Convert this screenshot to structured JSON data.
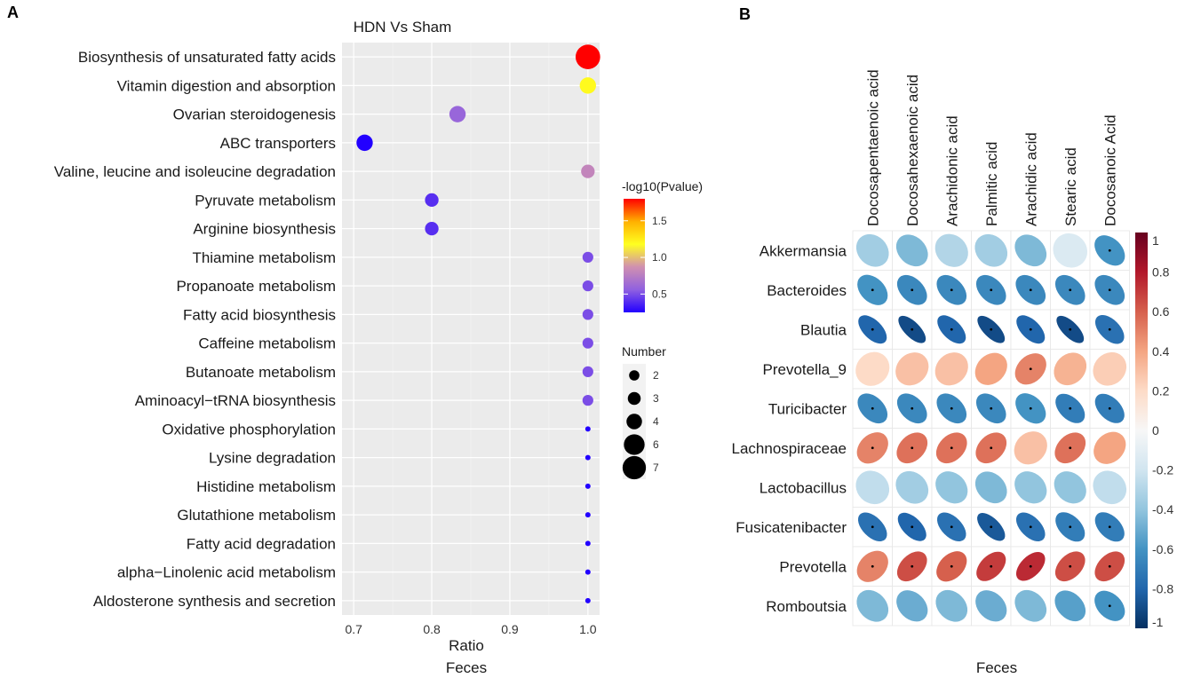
{
  "panels": {
    "a_label": "A",
    "b_label": "B"
  },
  "chart_data": [
    {
      "type": "scatter",
      "title": "HDN Vs Sham",
      "xlabel": "Ratio",
      "xlabel2": "Feces",
      "xlim": [
        0.7,
        1.0
      ],
      "xticks": [
        "0.7",
        "0.8",
        "0.9",
        "1.0"
      ],
      "xtick_values": [
        0.7,
        0.8,
        0.9,
        1.0
      ],
      "categories": [
        "Biosynthesis of unsaturated fatty acids",
        "Vitamin digestion and absorption",
        "Ovarian steroidogenesis",
        "ABC transporters",
        "Valine, leucine and isoleucine degradation",
        "Pyruvate metabolism",
        "Arginine biosynthesis",
        "Thiamine metabolism",
        "Propanoate metabolism",
        "Fatty acid biosynthesis",
        "Caffeine metabolism",
        "Butanoate metabolism",
        "Aminoacyl−tRNA biosynthesis",
        "Oxidative phosphorylation",
        "Lysine degradation",
        "Histidine metabolism",
        "Glutathione metabolism",
        "Fatty acid degradation",
        "alpha−Linolenic acid metabolism",
        "Aldosterone synthesis and secretion"
      ],
      "points": [
        {
          "ratio": 1.0,
          "number": 7,
          "neglog10p": 1.8
        },
        {
          "ratio": 1.0,
          "number": 4,
          "neglog10p": 1.2
        },
        {
          "ratio": 0.833,
          "number": 4,
          "neglog10p": 0.6
        },
        {
          "ratio": 0.714,
          "number": 4,
          "neglog10p": 0.25
        },
        {
          "ratio": 1.0,
          "number": 3,
          "neglog10p": 0.8
        },
        {
          "ratio": 0.8,
          "number": 3,
          "neglog10p": 0.4
        },
        {
          "ratio": 0.8,
          "number": 3,
          "neglog10p": 0.4
        },
        {
          "ratio": 1.0,
          "number": 2,
          "neglog10p": 0.5
        },
        {
          "ratio": 1.0,
          "number": 2,
          "neglog10p": 0.5
        },
        {
          "ratio": 1.0,
          "number": 2,
          "neglog10p": 0.5
        },
        {
          "ratio": 1.0,
          "number": 2,
          "neglog10p": 0.5
        },
        {
          "ratio": 1.0,
          "number": 2,
          "neglog10p": 0.5
        },
        {
          "ratio": 1.0,
          "number": 2,
          "neglog10p": 0.5
        },
        {
          "ratio": 1.0,
          "number": 1,
          "neglog10p": 0.25
        },
        {
          "ratio": 1.0,
          "number": 1,
          "neglog10p": 0.25
        },
        {
          "ratio": 1.0,
          "number": 1,
          "neglog10p": 0.25
        },
        {
          "ratio": 1.0,
          "number": 1,
          "neglog10p": 0.25
        },
        {
          "ratio": 1.0,
          "number": 1,
          "neglog10p": 0.25
        },
        {
          "ratio": 1.0,
          "number": 1,
          "neglog10p": 0.25
        },
        {
          "ratio": 1.0,
          "number": 1,
          "neglog10p": 0.25
        }
      ],
      "color_legend": {
        "title": "-log10(Pvalue)",
        "range": [
          0.25,
          1.8
        ],
        "ticks": [
          "0.5",
          "1.0",
          "1.5"
        ],
        "tick_values": [
          0.5,
          1.0,
          1.5
        ],
        "colors": [
          "#2200ff",
          "#c080d0",
          "#ffff00",
          "#ff0000"
        ]
      },
      "size_legend": {
        "title": "Number",
        "labels": [
          "2",
          "3",
          "4",
          "6",
          "7"
        ],
        "values": [
          2,
          3,
          4,
          6,
          7
        ]
      }
    },
    {
      "type": "heatmap",
      "subtype": "correlation-ellipse",
      "xlabel": "Feces",
      "columns": [
        "Docosapentaenoic acid",
        "Docosahexaenoic acid",
        "Arachidonic acid",
        "Palmitic acid",
        "Arachidic acid",
        "Stearic acid",
        "Docosanoic Acid"
      ],
      "rows": [
        "Akkermansia",
        "Bacteroides",
        "Blautia",
        "Prevotella_9",
        "Turicibacter",
        "Lachnospiraceae",
        "Lactobacillus",
        "Fusicatenibacter",
        "Prevotella",
        "Romboutsia"
      ],
      "values": [
        [
          -0.35,
          -0.45,
          -0.3,
          -0.35,
          -0.45,
          -0.15,
          -0.6
        ],
        [
          -0.6,
          -0.65,
          -0.65,
          -0.65,
          -0.65,
          -0.65,
          -0.65
        ],
        [
          -0.8,
          -0.9,
          -0.8,
          -0.9,
          -0.8,
          -0.9,
          -0.75
        ],
        [
          0.2,
          0.3,
          0.3,
          0.4,
          0.5,
          0.35,
          0.25
        ],
        [
          -0.65,
          -0.65,
          -0.65,
          -0.65,
          -0.6,
          -0.7,
          -0.7
        ],
        [
          0.5,
          0.55,
          0.55,
          0.55,
          0.3,
          0.55,
          0.4
        ],
        [
          -0.25,
          -0.35,
          -0.4,
          -0.45,
          -0.4,
          -0.4,
          -0.25
        ],
        [
          -0.75,
          -0.8,
          -0.75,
          -0.85,
          -0.75,
          -0.7,
          -0.7
        ],
        [
          0.5,
          0.65,
          0.6,
          0.7,
          0.75,
          0.65,
          0.65
        ],
        [
          -0.45,
          -0.5,
          -0.45,
          -0.5,
          -0.45,
          -0.55,
          -0.6
        ]
      ],
      "significant": [
        [
          false,
          false,
          false,
          false,
          false,
          false,
          true
        ],
        [
          true,
          true,
          true,
          true,
          true,
          true,
          true
        ],
        [
          true,
          true,
          true,
          true,
          true,
          true,
          true
        ],
        [
          false,
          false,
          false,
          false,
          true,
          false,
          false
        ],
        [
          true,
          true,
          true,
          true,
          true,
          true,
          true
        ],
        [
          true,
          true,
          true,
          true,
          false,
          true,
          false
        ],
        [
          false,
          false,
          false,
          false,
          false,
          false,
          false
        ],
        [
          true,
          true,
          true,
          true,
          true,
          true,
          true
        ],
        [
          true,
          true,
          true,
          true,
          true,
          true,
          true
        ],
        [
          false,
          false,
          false,
          false,
          false,
          false,
          true
        ]
      ],
      "colorbar": {
        "range": [
          -1,
          1
        ],
        "ticks": [
          "1",
          "0.8",
          "0.6",
          "0.4",
          "0.2",
          "0",
          "-0.2",
          "-0.4",
          "-0.6",
          "-0.8",
          "-1"
        ],
        "tick_values": [
          1,
          0.8,
          0.6,
          0.4,
          0.2,
          0,
          -0.2,
          -0.4,
          -0.6,
          -0.8,
          -1
        ],
        "colors": [
          "#053061",
          "#2166ac",
          "#4393c3",
          "#92c5de",
          "#d1e5f0",
          "#f7f7f7",
          "#fddbc7",
          "#f4a582",
          "#d6604d",
          "#b2182b",
          "#67001f"
        ]
      }
    }
  ]
}
